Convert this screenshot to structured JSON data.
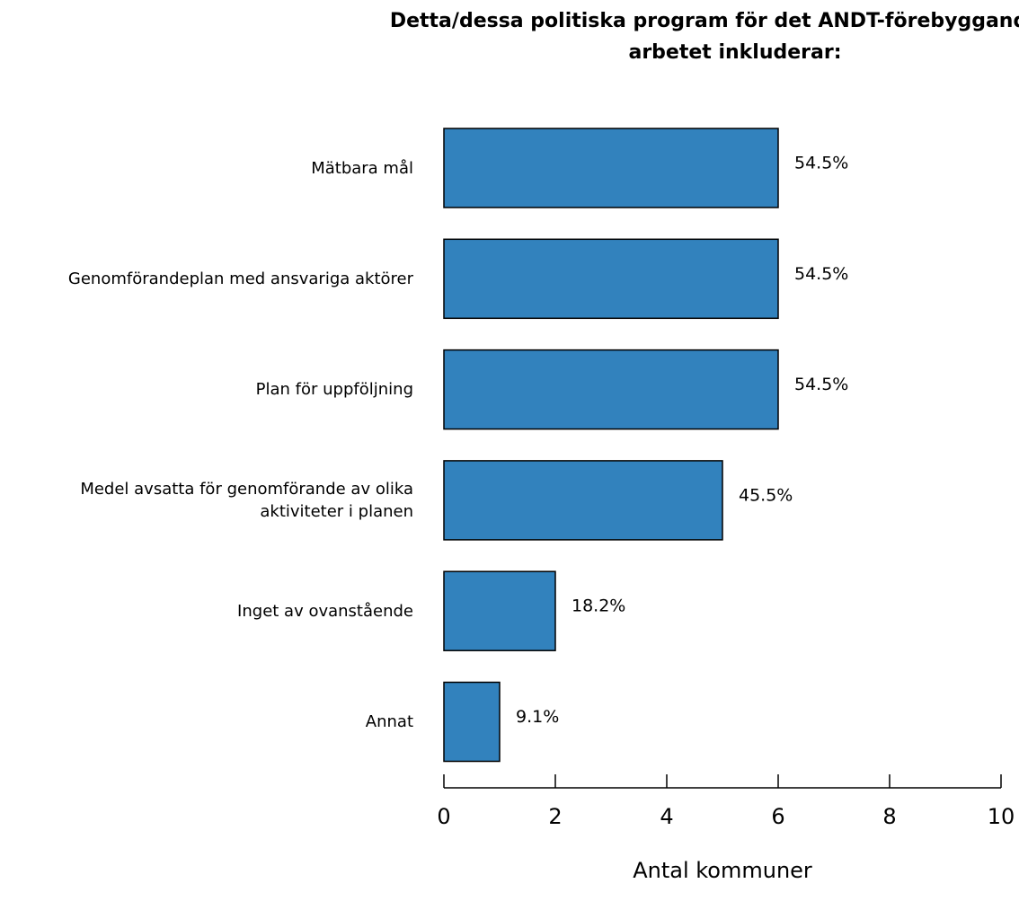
{
  "chart_data": {
    "type": "barh",
    "title": "Detta/dessa politiska program för det ANDT-förebyggande arbetet inkluderar:",
    "xlabel": "Antal kommuner",
    "categories": [
      "Mätbara mål",
      "Genomförandeplan med ansvariga aktörer",
      "Plan för uppföljning",
      "Medel avsatta för genomförande av olika aktiviteter i planen",
      "Inget av ovanstående",
      "Annat"
    ],
    "values": [
      6,
      6,
      6,
      5,
      2,
      1
    ],
    "percent_labels": [
      "54.5%",
      "54.5%",
      "54.5%",
      "45.5%",
      "18.2%",
      "9.1%"
    ],
    "color": "#3282bd",
    "xlim": [
      0,
      10
    ],
    "xticks": [
      0,
      2,
      4,
      6,
      8,
      10
    ]
  }
}
